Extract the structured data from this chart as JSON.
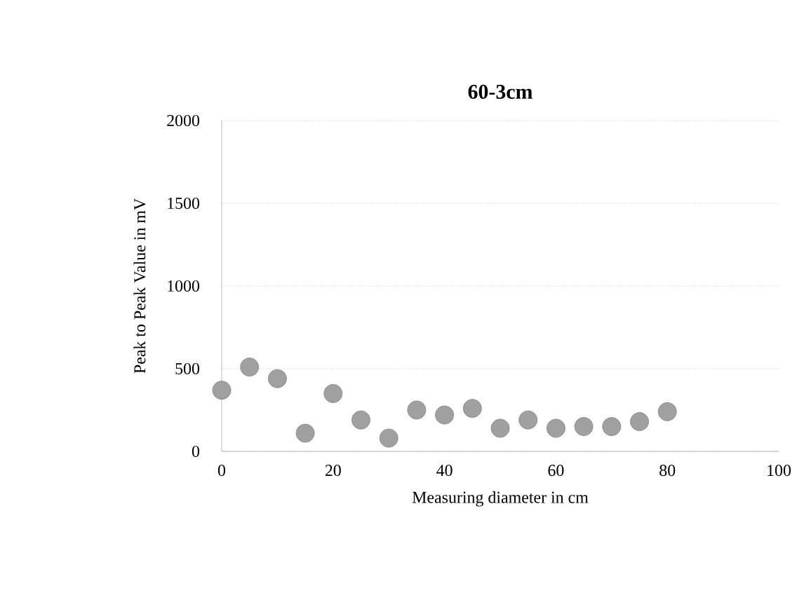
{
  "chart_data": {
    "type": "scatter",
    "title": "60-3cm",
    "xlabel": "Measuring diameter in cm",
    "ylabel": "Peak to Peak Value in mV",
    "x": [
      0,
      5,
      10,
      15,
      20,
      25,
      30,
      35,
      40,
      45,
      50,
      55,
      60,
      65,
      70,
      75,
      80
    ],
    "values": [
      370,
      510,
      440,
      110,
      350,
      190,
      80,
      250,
      220,
      260,
      140,
      190,
      140,
      150,
      150,
      180,
      240
    ],
    "color": "#a0a0a0",
    "marker": "circle",
    "xlim": [
      0,
      100
    ],
    "xticks": [
      0,
      20,
      40,
      60,
      80,
      100
    ],
    "ylim": [
      0,
      2000
    ],
    "yticks": [
      0,
      500,
      1000,
      1500,
      2000
    ],
    "grid": "y"
  }
}
